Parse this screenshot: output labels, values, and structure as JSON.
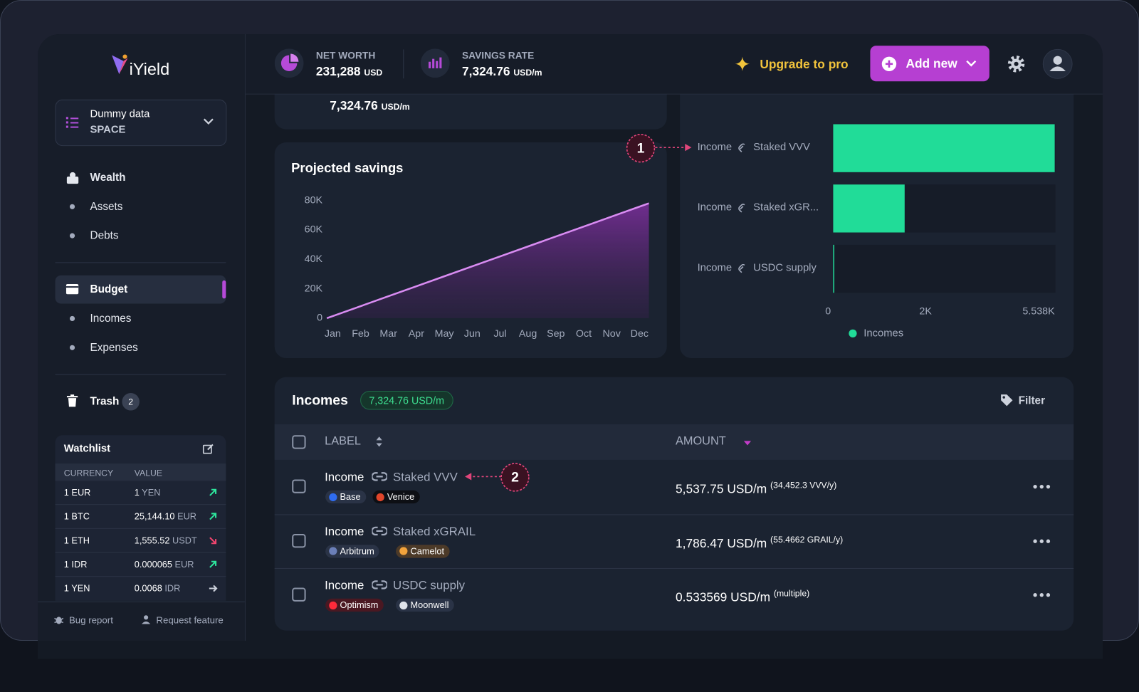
{
  "sidebar": {
    "logo": "iYield",
    "space_name": "Dummy data",
    "space_type": "SPACE",
    "nav": [
      "Wealth",
      "Assets",
      "Debts",
      "Budget",
      "Incomes",
      "Expenses",
      "Trash"
    ],
    "trash_count": "2",
    "watchlist": {
      "title": "Watchlist",
      "columns": [
        "CURRENCY",
        "VALUE"
      ],
      "rows": [
        [
          "1 EUR",
          "1",
          "YEN"
        ],
        [
          "1 BTC",
          "25,144.10",
          "EUR"
        ],
        [
          "1 ETH",
          "1,555.52",
          "USDT"
        ],
        [
          "1 IDR",
          "0.000065",
          "EUR"
        ],
        [
          "1 YEN",
          "0.0068",
          "IDR"
        ]
      ]
    },
    "footer": [
      "Bug report",
      "Request feature"
    ]
  },
  "header": {
    "net_worth_label": "NET WORTH",
    "net_worth": "231,288",
    "net_worth_unit": "USD",
    "savings_rate_label": "SAVINGS RATE",
    "savings_rate": "7,324.76",
    "savings_rate_unit": "USD/m",
    "upgrade": "Upgrade to pro",
    "add_new": "Add new"
  },
  "savings_card": {
    "value": "7,324.76",
    "unit": "USD/m"
  },
  "projected_savings": {
    "type": "line",
    "title": "Projected savings",
    "color": "#d98cf2",
    "categories": [
      "Jan",
      "Feb",
      "Mar",
      "Apr",
      "May",
      "Jun",
      "Jul",
      "Aug",
      "Sep",
      "Oct",
      "Nov",
      "Dec"
    ],
    "values": [
      0,
      7100,
      14200,
      21300,
      28400,
      35500,
      42600,
      49700,
      56800,
      63900,
      71000,
      78100
    ],
    "ylim": [
      0,
      80000
    ],
    "yticks": [
      0,
      {
        "value": 20000,
        "label": "20K"
      },
      {
        "value": 40000,
        "label": "40K"
      },
      {
        "value": 60000,
        "label": "60K"
      },
      {
        "value": 80000,
        "label": "80K"
      }
    ]
  },
  "budget_breakdown": {
    "type": "bar",
    "orientation": "horizontal",
    "category_prefix": [
      "Income",
      "Income",
      "Income"
    ],
    "categories": [
      "Staked VVV",
      "Staked xGR...",
      "USDC supply"
    ],
    "series": [
      {
        "name": "Incomes",
        "color": "#21dc98",
        "values": [
          5537.75,
          1786.47,
          0.533569
        ]
      }
    ],
    "xlim": [
      0,
      5538
    ],
    "xticks": [
      0,
      {
        "value": 2000,
        "label": "2K"
      },
      {
        "value": 5538,
        "label": "5.538K"
      }
    ]
  },
  "annotations": [
    "1",
    "2"
  ],
  "incomes_table": {
    "title": "Incomes",
    "total": "7,324.76 USD/m",
    "filter": "Filter",
    "columns": [
      "LABEL",
      "AMOUNT"
    ],
    "rows": [
      {
        "type": "Income",
        "name": "Staked VVV",
        "tags": [
          "Base",
          "Venice"
        ],
        "amount": "5,537.75 USD/m",
        "detail": "(34,452.3 VVV/y)"
      },
      {
        "type": "Income",
        "name": "Staked xGRAIL",
        "tags": [
          "Arbitrum",
          "Camelot"
        ],
        "amount": "1,786.47 USD/m",
        "detail": "(55.4662 GRAIL/y)"
      },
      {
        "type": "Income",
        "name": "USDC supply",
        "tags": [
          "Optimism",
          "Moonwell"
        ],
        "amount": "0.533569 USD/m",
        "detail": "(multiple)"
      }
    ]
  }
}
